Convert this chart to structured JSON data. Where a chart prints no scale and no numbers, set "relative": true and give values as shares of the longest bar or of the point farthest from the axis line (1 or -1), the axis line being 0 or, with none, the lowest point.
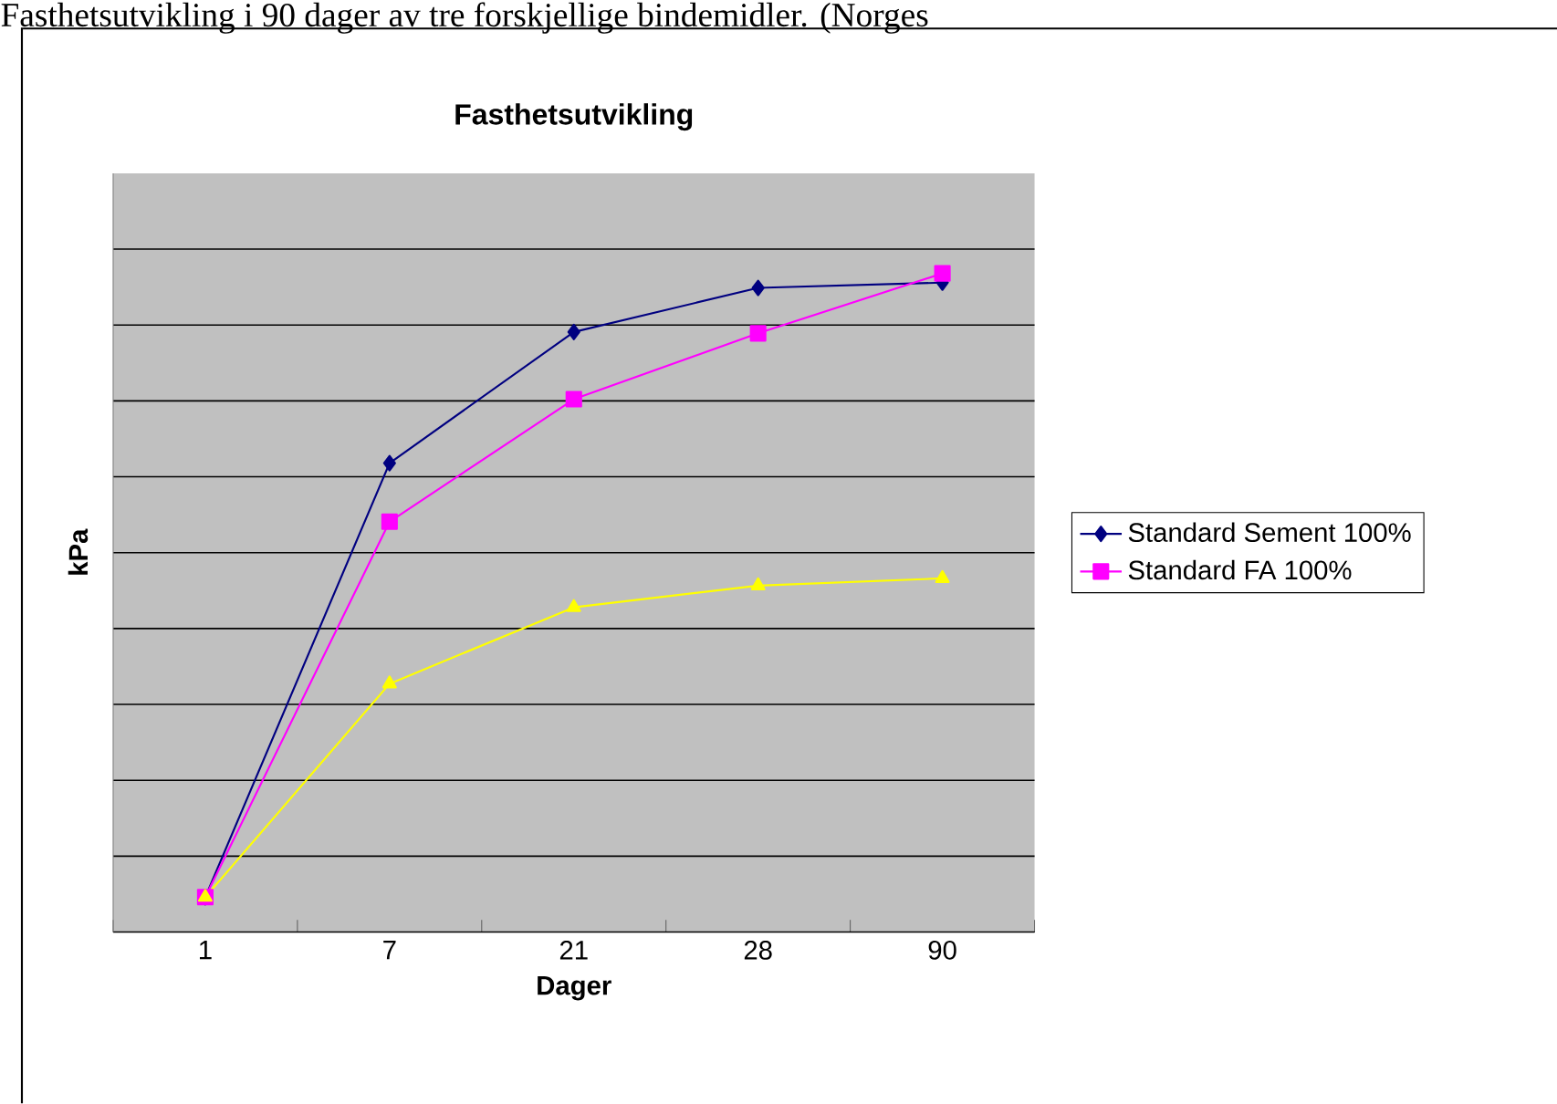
{
  "chart_data": {
    "type": "line",
    "title": "Fasthetsutvikling",
    "xlabel": "Dager",
    "ylabel": "kPa",
    "annotations": [
      "Fasthetsutvikling i 90 dager av tre forskjellige bindemidler. (Norges"
    ],
    "categories": [
      "1",
      "7",
      "21",
      "28",
      "90"
    ],
    "relative": true,
    "grid": "y",
    "legend": "right",
    "series": [
      {
        "name": "Standard Sement 100%",
        "color": "#000080",
        "marker": "diamond",
        "values": [
          0.053,
          0.712,
          0.911,
          0.978,
          0.986
        ]
      },
      {
        "name": "Standard FA 100%",
        "color": "#ff00ff",
        "marker": "square",
        "values": [
          0.053,
          0.623,
          0.809,
          0.909,
          1
        ]
      },
      {
        "color": "#ffff00",
        "marker": "triangle",
        "values": [
          0.053,
          0.377,
          0.493,
          0.526,
          0.537
        ]
      }
    ]
  }
}
